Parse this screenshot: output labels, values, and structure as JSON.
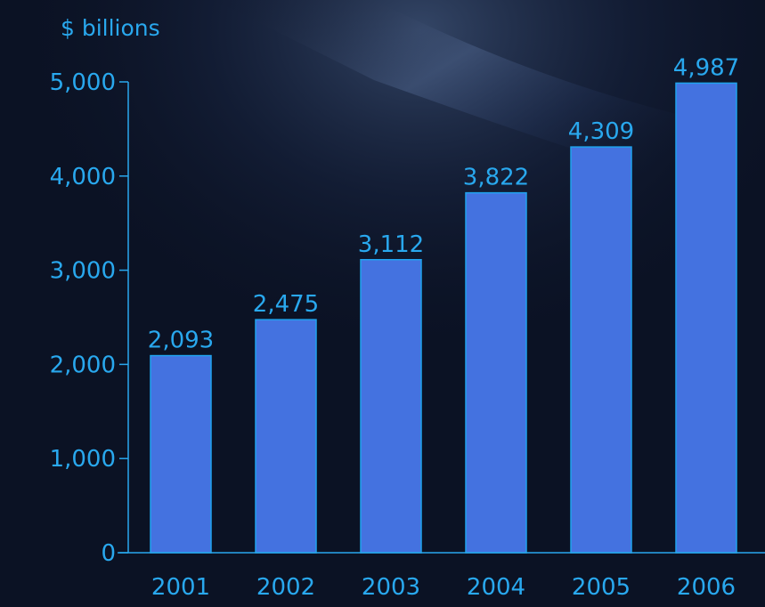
{
  "chart_data": {
    "type": "bar",
    "unit_label": "$ billions",
    "categories": [
      "2001",
      "2002",
      "2003",
      "2004",
      "2005",
      "2006"
    ],
    "values": [
      2093,
      2475,
      3112,
      3822,
      4309,
      4987
    ],
    "value_labels": [
      "2,093",
      "2,475",
      "3,112",
      "3,822",
      "4,309",
      "4,987"
    ],
    "y_ticks": [
      0,
      1000,
      2000,
      3000,
      4000,
      5000
    ],
    "y_tick_labels": [
      "0",
      "1,000",
      "2,000",
      "3,000",
      "4,000",
      "5,000"
    ],
    "ylim": [
      0,
      5000
    ],
    "grid": false,
    "colors": {
      "bar_fill": "#4472e0",
      "bar_stroke": "#1fa3ee",
      "text": "#29a8ee",
      "axis": "#29a8ee",
      "background": "#0b1224"
    }
  }
}
